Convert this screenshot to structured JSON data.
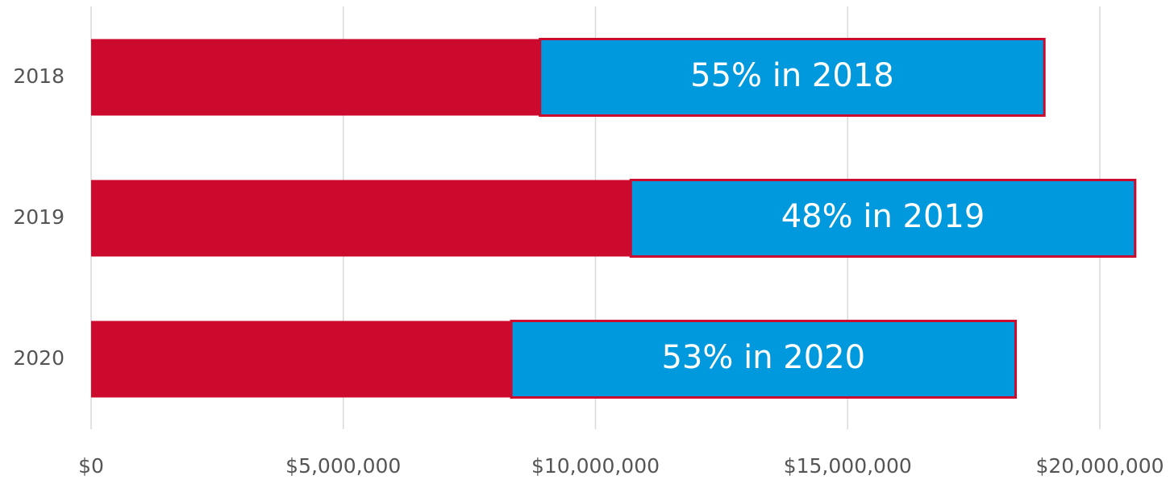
{
  "chart_data": {
    "type": "stacked-bar-horizontal",
    "categories": [
      "2018",
      "2019",
      "2020"
    ],
    "series": [
      {
        "color": "#cc0a2e",
        "values": [
          8900000,
          10700000,
          8330000
        ]
      },
      {
        "color": "#0099dd",
        "values": [
          10000000,
          10000000,
          10000000
        ]
      }
    ],
    "annotations": [
      "55% in 2018",
      "48% in 2019",
      "53% in 2020"
    ],
    "xlim": [
      0,
      20000000
    ],
    "xticks": [
      {
        "value": 0,
        "label": "$0"
      },
      {
        "value": 5000000,
        "label": "$5,000,000"
      },
      {
        "value": 10000000,
        "label": "$10,000,000"
      },
      {
        "value": 15000000,
        "label": "$15,000,000"
      },
      {
        "value": 20000000,
        "label": "$20,000,000"
      }
    ],
    "grid": true
  }
}
